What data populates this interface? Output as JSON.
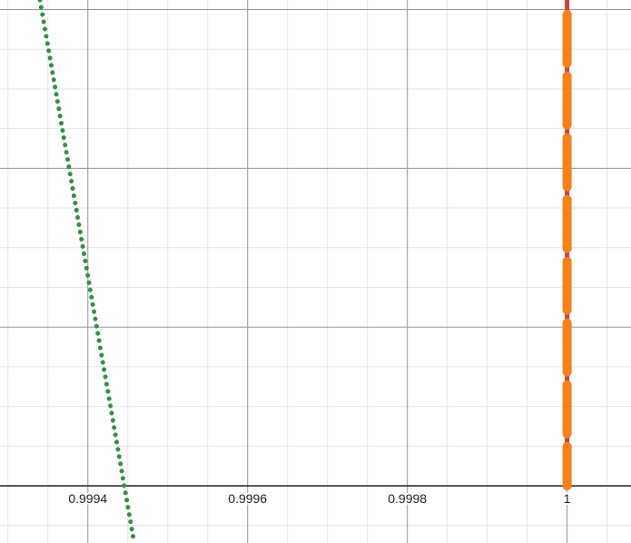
{
  "chart_data": {
    "type": "line",
    "title": "",
    "xlabel": "",
    "ylabel": "",
    "grid": true,
    "x_ticks": [
      {
        "value": 0.9994,
        "label": "0.9994"
      },
      {
        "value": 0.9996,
        "label": "0.9996"
      },
      {
        "value": 0.9998,
        "label": "0.9998"
      },
      {
        "value": 1,
        "label": "1"
      }
    ],
    "xlim": [
      0.99929,
      1.00008
    ],
    "ylim": [
      -0.36,
      3.06
    ],
    "y_ticks_labeled": false,
    "series": [
      {
        "style": "dotted",
        "color": "#388c46",
        "kind": "line",
        "points": [
          [
            0.99934,
            3.06
          ],
          [
            0.999458,
            -0.36
          ]
        ]
      },
      {
        "style": "solid",
        "color": "#c74440",
        "kind": "vertical",
        "x": 1,
        "y_from": 0.09,
        "y_to": 3.06
      },
      {
        "style": "dashed",
        "color": "#fa7e19",
        "kind": "vertical",
        "x": 1,
        "y_from": 0,
        "y_to": 2.97
      }
    ]
  }
}
